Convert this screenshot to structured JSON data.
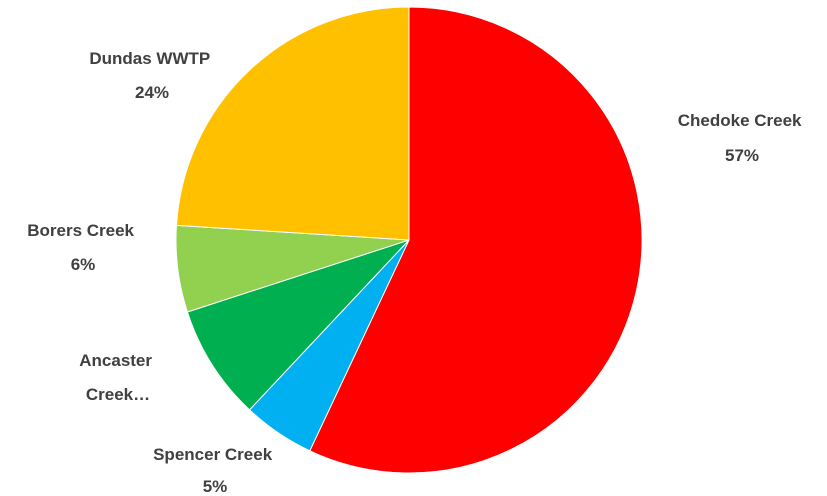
{
  "chart_data": {
    "type": "pie",
    "slices": [
      {
        "category": "Chedoke Creek",
        "display_label": [
          "Chedoke Creek"
        ],
        "value_label": "57%",
        "value": 57,
        "color": "#FF0000"
      },
      {
        "category": "Spencer Creek",
        "display_label": [
          "Spencer Creek"
        ],
        "value_label": "5%",
        "value": 5,
        "color": "#00B0F0"
      },
      {
        "category": "Ancaster Creek",
        "display_label": [
          "Ancaster",
          "Creek…"
        ],
        "value_label": "",
        "value": 8,
        "color": "#00B050"
      },
      {
        "category": "Borers Creek",
        "display_label": [
          "Borers Creek"
        ],
        "value_label": "6%",
        "value": 6,
        "color": "#92D050"
      },
      {
        "category": "Dundas WWTP",
        "display_label": [
          "Dundas WWTP"
        ],
        "value_label": "24%",
        "value": 24,
        "color": "#FFC000"
      }
    ]
  }
}
